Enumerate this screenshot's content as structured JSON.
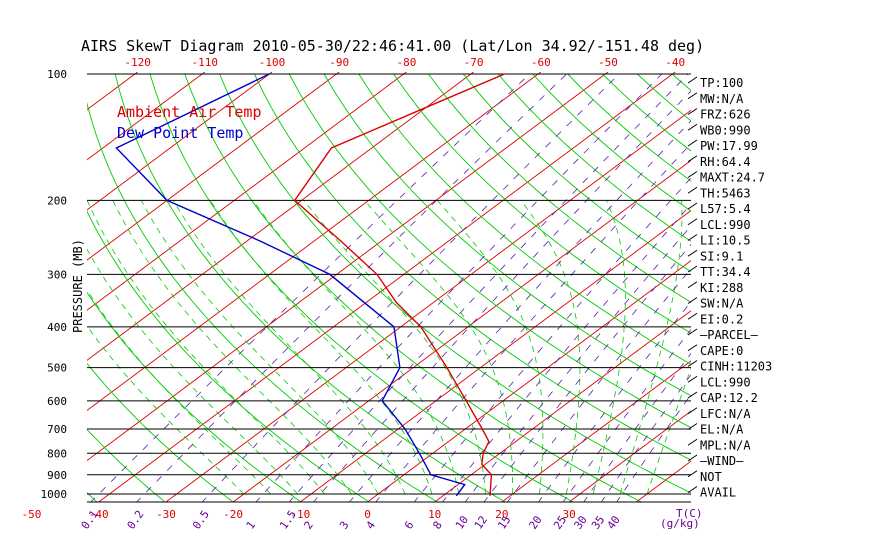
{
  "chart_data": {
    "type": "line",
    "title": "AIRS SkewT Diagram 2010-05-30/22:46:41.00 (Lat/Lon 34.92/-151.48 deg)",
    "ylabel": "PRESSURE (MB)",
    "xlabel": "T(C)",
    "mixing_ratio_unit": "(g/kg)",
    "y_scale": "log",
    "ylim": [
      1050,
      100
    ],
    "xlim_bottom_c": [
      -52,
      37
    ],
    "xlim_top_c": [
      -130,
      -39
    ],
    "pressure_ticks": [
      100,
      200,
      300,
      400,
      500,
      600,
      700,
      800,
      900,
      1000
    ],
    "bottom_temp_ticks": [
      -50,
      -40,
      -30,
      -20,
      -10,
      0,
      10,
      20,
      30
    ],
    "top_temp_ticks": [
      -120,
      -110,
      -100,
      -90,
      -80,
      -70,
      -60,
      -50,
      -40
    ],
    "mixing_ratio_labels": [
      "0.1",
      "0.2",
      "0.5",
      "1",
      "1.5",
      "2",
      "3",
      "4",
      "6",
      "8",
      "10",
      "12",
      "15",
      "20",
      "25",
      "30",
      "35",
      "40"
    ],
    "mixing_ratio_values": [
      0.1,
      0.2,
      0.5,
      1,
      1.5,
      2,
      3,
      4,
      6,
      8,
      10,
      12,
      15,
      20,
      25,
      30,
      35,
      40
    ],
    "legend": [
      {
        "name": "Ambient Air Temp",
        "color": "#dd0000"
      },
      {
        "name": "Dew Point Temp",
        "color": "#0000cc"
      }
    ],
    "legend_placement": "top-left",
    "series": [
      {
        "name": "Ambient Air Temp",
        "color": "#dd0000",
        "points": [
          {
            "p": 100,
            "t": -65
          },
          {
            "p": 120,
            "t": -70
          },
          {
            "p": 150,
            "t": -76
          },
          {
            "p": 200,
            "t": -71
          },
          {
            "p": 250,
            "t": -56
          },
          {
            "p": 300,
            "t": -44
          },
          {
            "p": 350,
            "t": -35.5
          },
          {
            "p": 400,
            "t": -27
          },
          {
            "p": 500,
            "t": -15
          },
          {
            "p": 600,
            "t": -5.5
          },
          {
            "p": 700,
            "t": 2.5
          },
          {
            "p": 750,
            "t": 6
          },
          {
            "p": 800,
            "t": 7.5
          },
          {
            "p": 850,
            "t": 9.5
          },
          {
            "p": 900,
            "t": 13
          },
          {
            "p": 1010,
            "t": 17
          }
        ]
      },
      {
        "name": "Dew Point Temp",
        "color": "#0000cc",
        "points": [
          {
            "p": 100,
            "t": -100
          },
          {
            "p": 150,
            "t": -108
          },
          {
            "p": 200,
            "t": -90
          },
          {
            "p": 250,
            "t": -68
          },
          {
            "p": 300,
            "t": -51
          },
          {
            "p": 400,
            "t": -31
          },
          {
            "p": 500,
            "t": -22
          },
          {
            "p": 600,
            "t": -18
          },
          {
            "p": 700,
            "t": -9
          },
          {
            "p": 800,
            "t": -2
          },
          {
            "p": 900,
            "t": 4
          },
          {
            "p": 950,
            "t": 11
          },
          {
            "p": 1010,
            "t": 12
          }
        ]
      }
    ],
    "indices": [
      "TP:100",
      "MW:N/A",
      "FRZ:626",
      "WB0:990",
      "PW:17.99",
      "RH:64.4",
      "MAXT:24.7",
      "TH:5463",
      "L57:5.4",
      "LCL:990",
      "LI:10.5",
      "SI:9.1",
      "TT:34.4",
      "KI:288",
      "SW:N/A",
      "EI:0.2",
      "–PARCEL–",
      "CAPE:0",
      "CINH:11203",
      "LCL:990",
      "CAP:12.2",
      "LFC:N/A",
      "EL:N/A",
      "MPL:N/A",
      "–WIND–",
      "NOT",
      "AVAIL"
    ],
    "colors": {
      "isotherm": "#dd0000",
      "dry_adiabat": "#00cc00",
      "moist_adiabat": "#00cc00",
      "mixing_ratio": "#5522aa",
      "isobar": "#000000",
      "mixing_ratio_label": "#660099",
      "title": "#000000"
    }
  }
}
